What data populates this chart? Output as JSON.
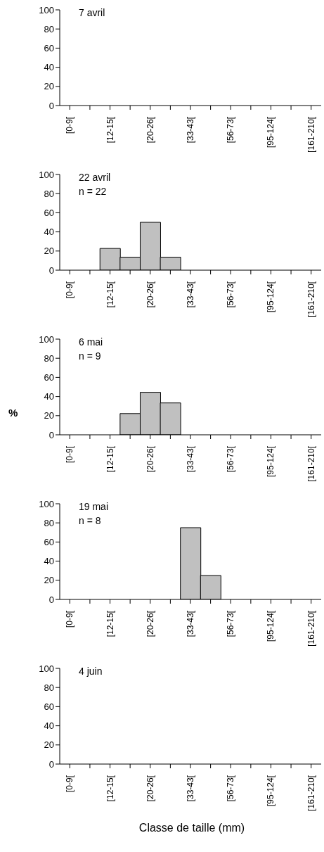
{
  "chart_data": [
    {
      "type": "bar",
      "categories": [
        "[0-9[",
        null,
        "[12-15[",
        null,
        "[20-26[",
        null,
        "[33-43[",
        null,
        "[56-73[",
        null,
        "[95-124[",
        null,
        "[161-210["
      ],
      "values": [
        0,
        0,
        0,
        0,
        0,
        0,
        0,
        0,
        0,
        0,
        0,
        0,
        0
      ],
      "color": "#c0c0c0",
      "ylim": [
        0,
        100
      ],
      "yticks": [
        0,
        20,
        40,
        60,
        80,
        100
      ],
      "grid": false,
      "legend": false,
      "annotations": [
        "7 avril"
      ]
    },
    {
      "type": "bar",
      "categories": [
        "[0-9[",
        null,
        "[12-15[",
        null,
        "[20-26[",
        null,
        "[33-43[",
        null,
        "[56-73[",
        null,
        "[95-124[",
        null,
        "[161-210["
      ],
      "values": [
        0,
        0,
        22.7,
        13.6,
        50,
        13.6,
        0,
        0,
        0,
        0,
        0,
        0,
        0
      ],
      "color": "#c0c0c0",
      "ylim": [
        0,
        100
      ],
      "yticks": [
        0,
        20,
        40,
        60,
        80,
        100
      ],
      "grid": false,
      "legend": false,
      "annotations": [
        "22 avril",
        "n = 22"
      ]
    },
    {
      "type": "bar",
      "categories": [
        "[0-9[",
        null,
        "[12-15[",
        null,
        "[20-26[",
        null,
        "[33-43[",
        null,
        "[56-73[",
        null,
        "[95-124[",
        null,
        "[161-210["
      ],
      "values": [
        0,
        0,
        0,
        22.2,
        44.4,
        33.3,
        0,
        0,
        0,
        0,
        0,
        0,
        0
      ],
      "color": "#c0c0c0",
      "ylim": [
        0,
        100
      ],
      "yticks": [
        0,
        20,
        40,
        60,
        80,
        100
      ],
      "grid": false,
      "legend": false,
      "ylabel": "%",
      "annotations": [
        "6 mai",
        "n = 9"
      ]
    },
    {
      "type": "bar",
      "categories": [
        "[0-9[",
        null,
        "[12-15[",
        null,
        "[20-26[",
        null,
        "[33-43[",
        null,
        "[56-73[",
        null,
        "[95-124[",
        null,
        "[161-210["
      ],
      "values": [
        0,
        0,
        0,
        0,
        0,
        0,
        75,
        25,
        0,
        0,
        0,
        0,
        0
      ],
      "color": "#c0c0c0",
      "ylim": [
        0,
        100
      ],
      "yticks": [
        0,
        20,
        40,
        60,
        80,
        100
      ],
      "grid": false,
      "legend": false,
      "annotations": [
        "19 mai",
        "n = 8"
      ]
    },
    {
      "type": "bar",
      "categories": [
        "[0-9[",
        null,
        "[12-15[",
        null,
        "[20-26[",
        null,
        "[33-43[",
        null,
        "[56-73[",
        null,
        "[95-124[",
        null,
        "[161-210["
      ],
      "values": [
        0,
        0,
        0,
        0,
        0,
        0,
        0,
        0,
        0,
        0,
        0,
        0,
        0
      ],
      "color": "#c0c0c0",
      "ylim": [
        0,
        100
      ],
      "yticks": [
        0,
        20,
        40,
        60,
        80,
        100
      ],
      "grid": false,
      "legend": false,
      "xlabel": "Classe de taille (mm)",
      "annotations": [
        "4 juin"
      ]
    }
  ]
}
